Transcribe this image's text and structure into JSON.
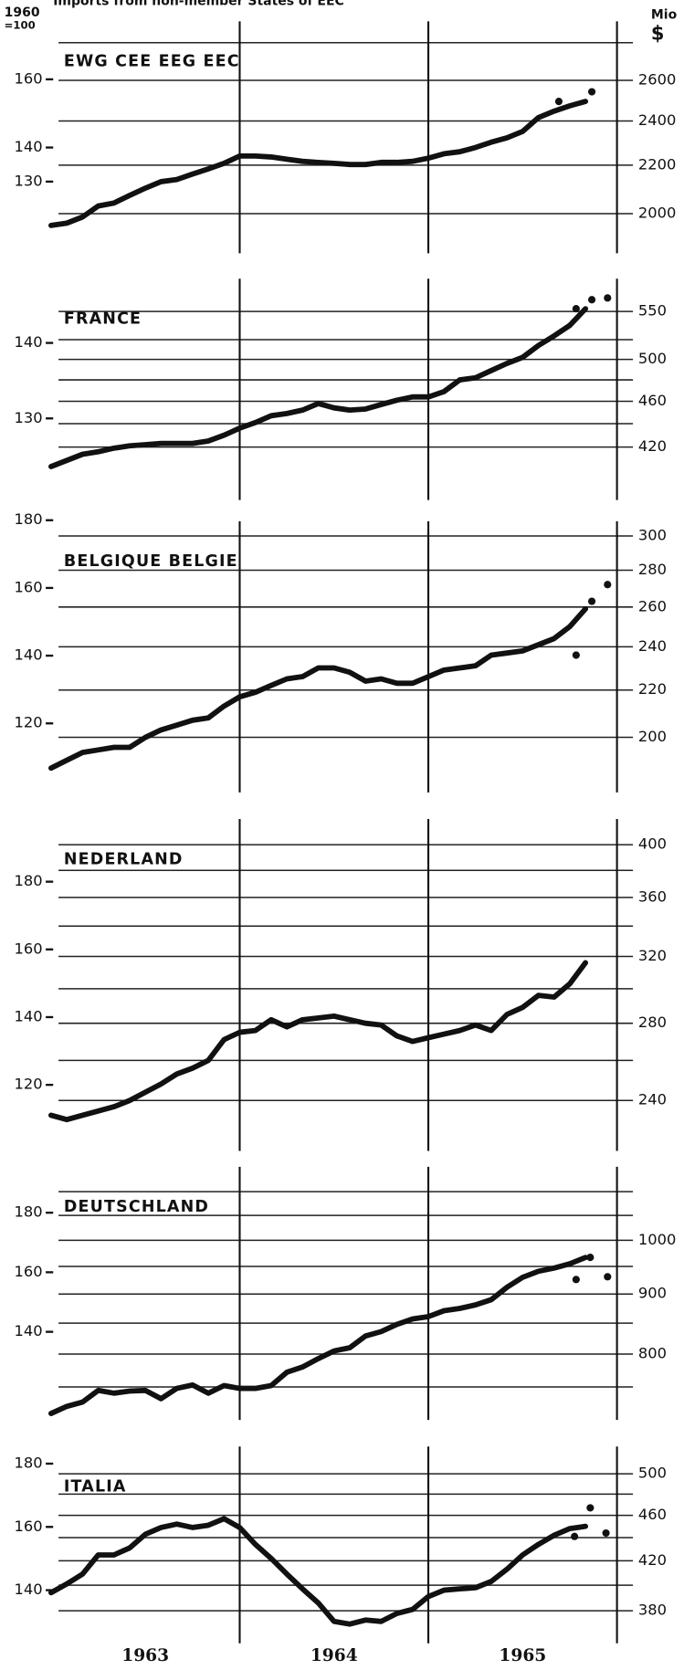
{
  "title": "Imports from non-member States of EEC",
  "left_unit": [
    "1960",
    "=100"
  ],
  "right_unit": [
    "Mio",
    "$"
  ],
  "chart_data": [
    {
      "type": "line",
      "title": "EWG CEE EEG EEC",
      "x": [
        0,
        1,
        2,
        3,
        4,
        5,
        6,
        7,
        8,
        9,
        10,
        11,
        12,
        13,
        14,
        15,
        16,
        17,
        18,
        19,
        20,
        21,
        22,
        23,
        24,
        25,
        26,
        27,
        28,
        29,
        30,
        31,
        32,
        33,
        34
      ],
      "xlim": [
        0,
        36
      ],
      "xgrid": [
        12,
        24,
        36
      ],
      "series": [
        {
          "color": "#111111",
          "axis": "y2",
          "values": [
            1954,
            1963,
            1987,
            2030,
            2042,
            2073,
            2103,
            2130,
            2139,
            2162,
            2184,
            2208,
            2240,
            2240,
            2236,
            2226,
            2217,
            2212,
            2208,
            2203,
            2203,
            2212,
            2212,
            2217,
            2231,
            2250,
            2259,
            2278,
            2302,
            2322,
            2351,
            2416,
            2447,
            2473,
            2494
          ]
        }
      ],
      "markers": {
        "color": "#111111",
        "x": [
          32.3,
          34.4
        ],
        "values": [
          2494,
          2542
        ]
      },
      "ylim": [
        109,
        177
      ],
      "yticks": [
        160,
        140,
        130
      ],
      "y2log": true,
      "y2lim": [
        1850,
        2920
      ],
      "y2ticks": [
        2000,
        2200,
        2400,
        2600
      ],
      "y2grid": [
        2800
      ]
    },
    {
      "type": "line",
      "title": "FRANCE",
      "x": [
        0,
        1,
        2,
        3,
        4,
        5,
        6,
        7,
        8,
        9,
        10,
        11,
        12,
        13,
        14,
        15,
        16,
        17,
        18,
        19,
        20,
        21,
        22,
        23,
        24,
        25,
        26,
        27,
        28,
        29,
        30,
        31,
        32,
        33,
        34
      ],
      "xlim": [
        0,
        36
      ],
      "xgrid": [
        12,
        24,
        36
      ],
      "series": [
        {
          "color": "#111111",
          "axis": "y2",
          "values": [
            404,
            409,
            414,
            416,
            419,
            421,
            422,
            423,
            423,
            423,
            425,
            430,
            436,
            441,
            447,
            449,
            452,
            458,
            454,
            452,
            453,
            457,
            461,
            464,
            464,
            469,
            480,
            482,
            489,
            496,
            502,
            514,
            524,
            535,
            553
          ]
        }
      ],
      "markers": {
        "color": "#111111",
        "x": [
          33.4,
          34.4,
          35.4
        ],
        "values": [
          553,
          563,
          565
        ]
      },
      "ylim": [
        119.2,
        148.5
      ],
      "yticks": [
        140,
        130
      ],
      "y2log": true,
      "y2lim": [
        378,
        587
      ],
      "y2ticks": [
        420,
        460,
        500,
        550
      ],
      "y2grid": [
        440,
        480,
        520
      ]
    },
    {
      "type": "line",
      "title": "BELGIQUE BELGIE",
      "x": [
        0,
        1,
        2,
        3,
        4,
        5,
        6,
        7,
        8,
        9,
        10,
        11,
        12,
        13,
        14,
        15,
        16,
        17,
        18,
        19,
        20,
        21,
        22,
        23,
        24,
        25,
        26,
        27,
        28,
        29,
        30,
        31,
        32,
        33,
        34
      ],
      "xlim": [
        0,
        36
      ],
      "xgrid": [
        12,
        24,
        36
      ],
      "series": [
        {
          "color": "#111111",
          "axis": "y2",
          "values": [
            188,
            191,
            194,
            195,
            196,
            196,
            200,
            203,
            205,
            207,
            208,
            213,
            217,
            219,
            222,
            225,
            226,
            230,
            230,
            228,
            224,
            225,
            223,
            223,
            226,
            229,
            230,
            231,
            236,
            237,
            238,
            241,
            244,
            250,
            259
          ]
        }
      ],
      "markers": {
        "color": "#111111",
        "x": [
          33.4,
          34.4,
          35.4
        ],
        "values": [
          236,
          263,
          272
        ]
      },
      "ylim": [
        99.6,
        179.7
      ],
      "yticks": [
        180,
        160,
        140,
        120
      ],
      "y2log": true,
      "y2lim": [
        179,
        309
      ],
      "y2ticks": [
        200,
        220,
        240,
        260,
        280,
        300
      ],
      "y2grid": []
    },
    {
      "type": "line",
      "title": "NEDERLAND",
      "x": [
        0,
        1,
        2,
        3,
        4,
        5,
        6,
        7,
        8,
        9,
        10,
        11,
        12,
        13,
        14,
        15,
        16,
        17,
        18,
        19,
        20,
        21,
        22,
        23,
        24,
        25,
        26,
        27,
        28,
        29,
        30,
        31,
        32,
        33,
        34
      ],
      "xlim": [
        0,
        36
      ],
      "xgrid": [
        12,
        24,
        36
      ],
      "series": [
        {
          "color": "#111111",
          "axis": "y2",
          "values": [
            233,
            231,
            233,
            235,
            237,
            240,
            244,
            248,
            253,
            256,
            260,
            271,
            275,
            276,
            282,
            278,
            282,
            283,
            284,
            282,
            280,
            279,
            273,
            270,
            272,
            274,
            276,
            279,
            276,
            285,
            289,
            296,
            295,
            303,
            316
          ]
        }
      ],
      "ylim": [
        100.5,
        198.5
      ],
      "yticks": [
        180,
        160,
        140,
        120
      ],
      "y2log": true,
      "y2lim": [
        217,
        421
      ],
      "y2ticks": [
        240,
        280,
        320,
        360,
        400
      ],
      "y2grid": [
        260,
        300,
        340,
        380
      ]
    },
    {
      "type": "line",
      "title": "DEUTSCHLAND",
      "x": [
        0,
        1,
        2,
        3,
        4,
        5,
        6,
        7,
        8,
        9,
        10,
        11,
        12,
        13,
        14,
        15,
        16,
        17,
        18,
        19,
        20,
        21,
        22,
        23,
        24,
        25,
        26,
        27,
        28,
        29,
        30,
        31,
        32,
        33,
        34
      ],
      "xlim": [
        0,
        36
      ],
      "xgrid": [
        12,
        24,
        36
      ],
      "series": [
        {
          "color": "#111111",
          "axis": "y2",
          "values": [
            712,
            722,
            728,
            745,
            741,
            744,
            745,
            733,
            748,
            753,
            741,
            752,
            748,
            748,
            752,
            772,
            780,
            793,
            805,
            810,
            829,
            836,
            848,
            857,
            861,
            871,
            875,
            881,
            890,
            912,
            930,
            941,
            947,
            955,
            967
          ]
        }
      ],
      "markers": {
        "color": "#111111",
        "x": [
          33.4,
          34.3,
          35.4
        ],
        "values": [
          926,
          967,
          931
        ]
      },
      "ylim": [
        110.4,
        195.4
      ],
      "yticks": [
        180,
        160,
        140
      ],
      "y2log": true,
      "y2lim": [
        703,
        1155
      ],
      "y2ticks": [
        800,
        900,
        1000
      ],
      "y2grid": [
        750,
        850,
        950,
        1050,
        1100
      ]
    },
    {
      "type": "line",
      "title": "ITALIA",
      "x": [
        0,
        1,
        2,
        3,
        4,
        5,
        6,
        7,
        8,
        9,
        10,
        11,
        12,
        13,
        14,
        15,
        16,
        17,
        18,
        19,
        20,
        21,
        22,
        23,
        24,
        25,
        26,
        27,
        28,
        29,
        30,
        31,
        32,
        33,
        34
      ],
      "xlim": [
        0,
        36
      ],
      "xgrid": [
        12,
        24,
        36
      ],
      "xticks": [
        {
          "value": 6,
          "label": "1963"
        },
        {
          "value": 18,
          "label": "1964"
        },
        {
          "value": 30,
          "label": "1965"
        }
      ],
      "series": [
        {
          "color": "#111111",
          "axis": "y2",
          "values": [
            394,
            401,
            409,
            425,
            425,
            431,
            443,
            449,
            452,
            449,
            451,
            457,
            449,
            434,
            422,
            409,
            397,
            386,
            372,
            370,
            373,
            372,
            378,
            381,
            391,
            396,
            397,
            398,
            403,
            413,
            425,
            434,
            442,
            448,
            450
          ]
        }
      ],
      "markers": {
        "color": "#111111",
        "x": [
          33.3,
          34.3,
          35.3
        ],
        "values": [
          441,
          467,
          444
        ]
      },
      "ylim": [
        123.2,
        185.4
      ],
      "yticks": [
        180,
        160,
        140
      ],
      "y2log": true,
      "y2lim": [
        356,
        528
      ],
      "y2ticks": [
        380,
        420,
        460,
        500
      ],
      "y2grid": [
        400,
        440,
        480
      ]
    }
  ]
}
